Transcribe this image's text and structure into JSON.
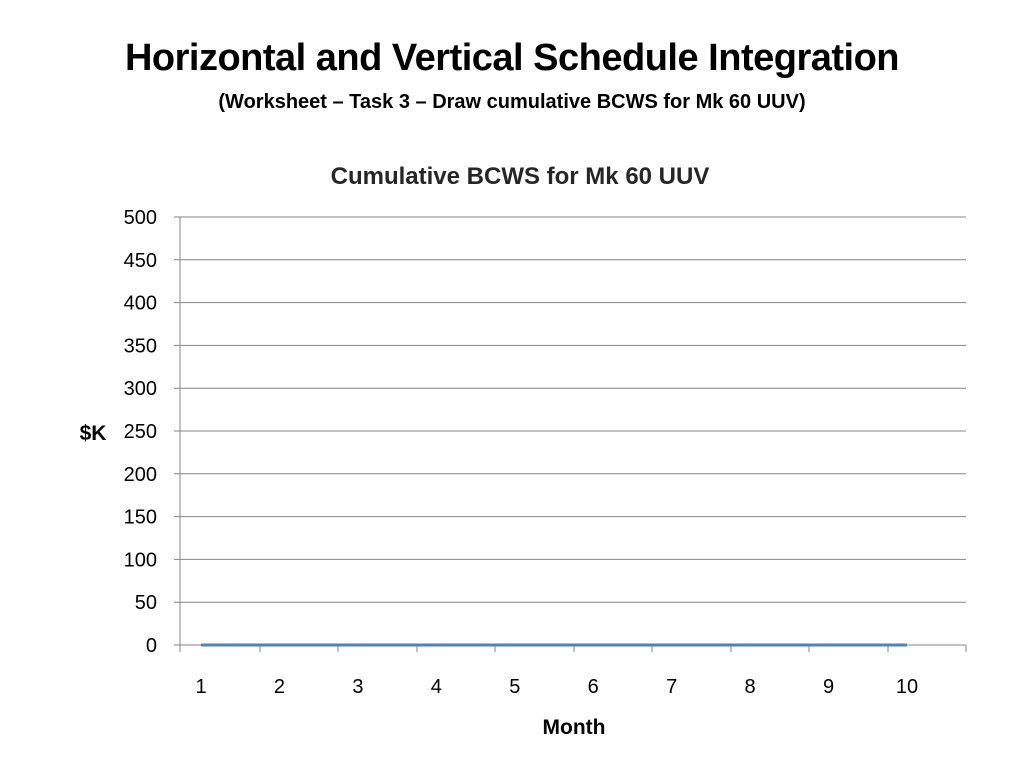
{
  "slide": {
    "title": "Horizontal and Vertical Schedule Integration",
    "subtitle": "(Worksheet – Task 3 – Draw cumulative BCWS for Mk 60 UUV)"
  },
  "chart_data": {
    "type": "line",
    "title": "Cumulative BCWS for Mk 60 UUV",
    "xlabel": "Month",
    "ylabel": "$K",
    "x": [
      1,
      2,
      3,
      4,
      5,
      6,
      7,
      8,
      9,
      10
    ],
    "categories": [
      "1",
      "2",
      "3",
      "4",
      "5",
      "6",
      "7",
      "8",
      "9",
      "10"
    ],
    "series": [
      {
        "values": [
          0,
          0,
          0,
          0,
          0,
          0,
          0,
          0,
          0,
          0
        ],
        "color": "#4F81BD"
      }
    ],
    "ylim": [
      0,
      500
    ],
    "yticks": [
      0,
      50,
      100,
      150,
      200,
      250,
      300,
      350,
      400,
      450,
      500
    ],
    "grid": true,
    "legend": "none",
    "colors": {
      "gridline": "#868686",
      "series": "#4F81BD"
    }
  }
}
